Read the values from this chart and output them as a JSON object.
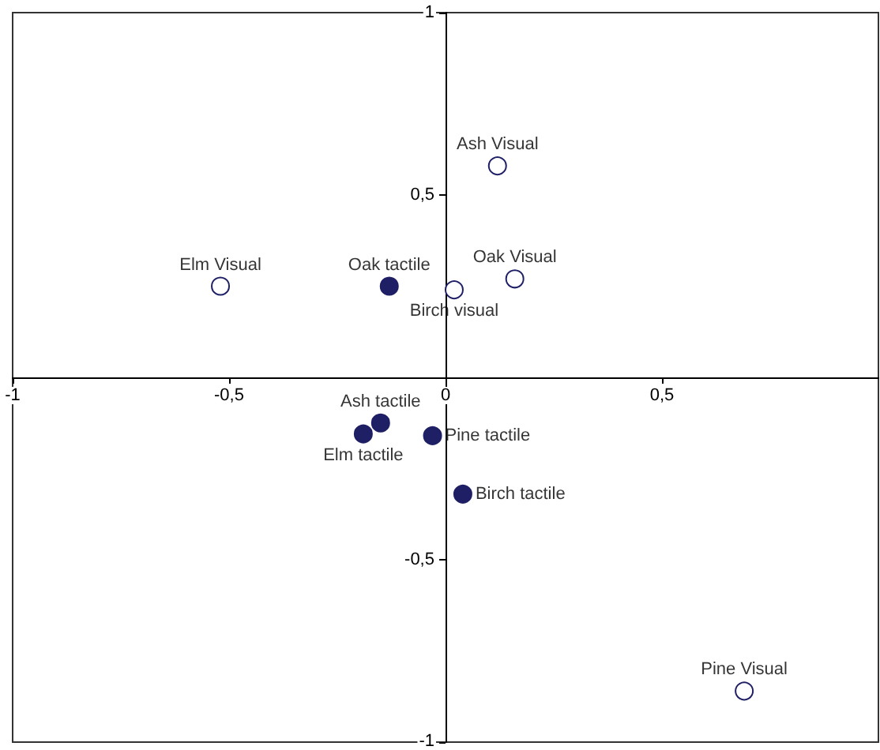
{
  "chart_data": {
    "type": "scatter",
    "xlim": [
      -1,
      1
    ],
    "ylim": [
      -1,
      1
    ],
    "xticks": [
      -1,
      {
        "value": -0.5,
        "label": "-0,5"
      },
      0,
      {
        "value": 0.5,
        "label": "0,5"
      }
    ],
    "yticks": [
      -1,
      {
        "value": -0.5,
        "label": "-0,5"
      },
      {
        "value": 0,
        "label": null
      },
      {
        "value": 0.5,
        "label": "0,5"
      },
      1
    ],
    "grid": false,
    "marker": "circle",
    "series": [
      {
        "color": "#ffffff",
        "x": [
          -0.52,
          0.02,
          0.16,
          0.12,
          0.69
        ],
        "values": [
          0.25,
          0.24,
          0.27,
          0.58,
          -0.86
        ]
      },
      {
        "color": "#1f1f66",
        "x": [
          -0.13,
          -0.15,
          -0.19,
          -0.03,
          0.04
        ],
        "values": [
          0.25,
          -0.125,
          -0.155,
          -0.16,
          -0.32
        ]
      }
    ],
    "annotations": [
      {
        "text": "Elm Visual",
        "x": -0.52,
        "y": 0.25
      },
      {
        "text": "Oak tactile",
        "x": -0.13,
        "y": 0.25
      },
      {
        "text": "Oak Visual",
        "x": 0.16,
        "y": 0.27
      },
      {
        "text": "Birch visual",
        "x": 0.02,
        "y": 0.24
      },
      {
        "text": "Ash Visual",
        "x": 0.12,
        "y": 0.58
      },
      {
        "text": "Pine Visual",
        "x": 0.69,
        "y": -0.86
      },
      {
        "text": "Ash tactile",
        "x": -0.15,
        "y": -0.125
      },
      {
        "text": "Elm tactile",
        "x": -0.19,
        "y": -0.155
      },
      {
        "text": "Pine tactile",
        "x": -0.03,
        "y": -0.16
      },
      {
        "text": "Birch tactile",
        "x": 0.04,
        "y": -0.32
      }
    ]
  }
}
